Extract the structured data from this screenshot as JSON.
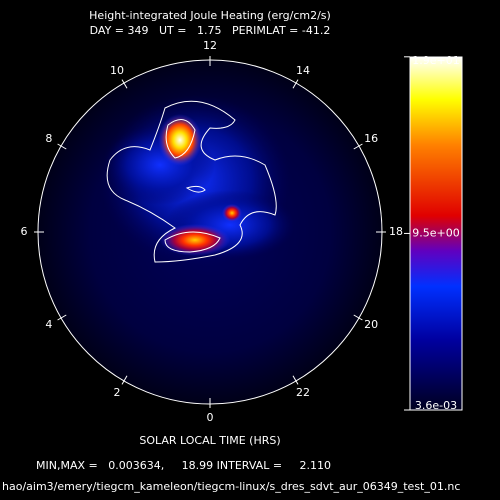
{
  "chart_data": {
    "type": "polar-contour",
    "title": "Height-integrated Joule Heating (erg/cm2/s)",
    "subtitle": "DAY = 349   UT =   1.75   PERIMLAT = -41.2",
    "xlabel": "SOLAR LOCAL TIME (HRS)",
    "hour_ticks": [
      12,
      14,
      16,
      18,
      20,
      22,
      0,
      2,
      4,
      6,
      8,
      10
    ],
    "clim": [
      0.003634,
      18.99
    ],
    "cticks": [
      {
        "value": 19,
        "label": "1.9e+01"
      },
      {
        "value": 9.5,
        "label": "9.5e+00"
      },
      {
        "value": 0.0036,
        "label": "3.6e-03"
      }
    ],
    "footer": "MIN,MAX =   0.003634,     18.99 INTERVAL =     2.110",
    "file": "hao/aim3/emery/tiegcm_kameleon/tiegcm-linux/s_dres_sdvt_aur_06349_test_01.nc"
  }
}
